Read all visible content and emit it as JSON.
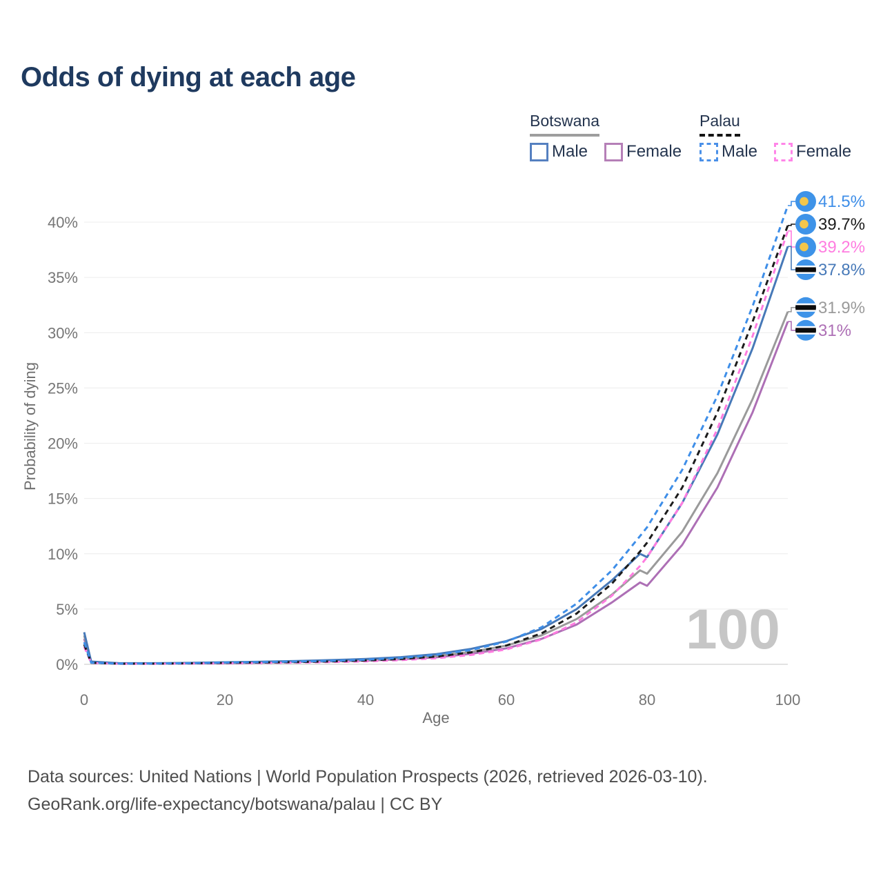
{
  "title": "Odds of dying at each age",
  "legend": {
    "groups": [
      {
        "name": "Botswana",
        "line_style": "solid",
        "underline_color": "#9e9e9e",
        "items": [
          {
            "label": "Male",
            "color": "#5580c0"
          },
          {
            "label": "Female",
            "color": "#b57fb7"
          }
        ]
      },
      {
        "name": "Palau",
        "line_style": "dashed",
        "underline_color": "#141414",
        "items": [
          {
            "label": "Male",
            "color": "#4a90e8"
          },
          {
            "label": "Female",
            "color": "#ff85e8"
          }
        ]
      }
    ]
  },
  "chart_data": {
    "type": "line",
    "title": "Odds of dying at each age",
    "xlabel": "Age",
    "ylabel": "Probability of dying",
    "xlim": [
      0,
      100
    ],
    "ylim_percent": [
      0,
      42
    ],
    "x_ticks": [
      "0",
      "20",
      "40",
      "60",
      "80",
      "100"
    ],
    "y_ticks": [
      "0%",
      "5%",
      "10%",
      "15%",
      "20%",
      "25%",
      "30%",
      "35%",
      "40%"
    ],
    "grid": "horizontal",
    "legend_position": "top-right",
    "watermark": "100",
    "ages": [
      0,
      1,
      5,
      10,
      15,
      20,
      25,
      30,
      35,
      40,
      45,
      50,
      55,
      60,
      65,
      70,
      75,
      79,
      80,
      85,
      90,
      95,
      100
    ],
    "series": [
      {
        "name": "Botswana female",
        "country": "Botswana",
        "sex": "female",
        "color": "#ad6fb5",
        "dash": false,
        "flag": "botswana",
        "end_label": "31%",
        "end_value": 31.0,
        "values_percent": [
          2.3,
          0.2,
          0.08,
          0.08,
          0.09,
          0.12,
          0.15,
          0.2,
          0.26,
          0.34,
          0.45,
          0.63,
          0.95,
          1.45,
          2.3,
          3.6,
          5.6,
          7.4,
          7.1,
          10.8,
          16.0,
          22.8,
          31.0
        ]
      },
      {
        "name": "Botswana both sexes",
        "country": "Botswana",
        "sex": "both",
        "color": "#9a9a9a",
        "dash": false,
        "flag": "botswana",
        "end_label": "31.9%",
        "end_value": 31.9,
        "values_percent": [
          2.6,
          0.22,
          0.09,
          0.09,
          0.11,
          0.15,
          0.19,
          0.24,
          0.31,
          0.4,
          0.53,
          0.75,
          1.12,
          1.7,
          2.62,
          4.1,
          6.3,
          8.5,
          8.2,
          12.0,
          17.3,
          24.0,
          31.9
        ]
      },
      {
        "name": "Botswana male",
        "country": "Botswana",
        "sex": "male",
        "color": "#4779b8",
        "dash": false,
        "flag": "botswana",
        "end_label": "37.8%",
        "end_value": 37.8,
        "values_percent": [
          2.9,
          0.25,
          0.1,
          0.1,
          0.13,
          0.19,
          0.24,
          0.3,
          0.38,
          0.48,
          0.65,
          0.92,
          1.4,
          2.1,
          3.2,
          5.0,
          7.6,
          10.0,
          9.7,
          14.6,
          20.8,
          28.6,
          37.8
        ]
      },
      {
        "name": "Palau female",
        "country": "Palau",
        "sex": "female",
        "color": "#ff7ce0",
        "dash": true,
        "flag": "palau",
        "end_label": "39.2%",
        "end_value": 39.2,
        "values_percent": [
          1.6,
          0.12,
          0.05,
          0.05,
          0.07,
          0.09,
          0.12,
          0.15,
          0.2,
          0.27,
          0.38,
          0.55,
          0.85,
          1.35,
          2.25,
          3.8,
          6.2,
          8.9,
          9.7,
          14.6,
          21.3,
          29.7,
          39.2
        ]
      },
      {
        "name": "Palau both sexes",
        "country": "Palau",
        "sex": "both",
        "color": "#1c1c1c",
        "dash": true,
        "flag": "palau",
        "end_label": "39.7%",
        "end_value": 39.7,
        "values_percent": [
          1.8,
          0.14,
          0.055,
          0.06,
          0.09,
          0.13,
          0.16,
          0.2,
          0.26,
          0.35,
          0.48,
          0.7,
          1.08,
          1.7,
          2.8,
          4.6,
          7.3,
          10.2,
          11.0,
          16.0,
          22.8,
          31.0,
          39.7
        ]
      },
      {
        "name": "Palau male",
        "country": "Palau",
        "sex": "male",
        "color": "#3e8ee8",
        "dash": true,
        "flag": "palau",
        "end_label": "41.5%",
        "end_value": 41.5,
        "values_percent": [
          2.0,
          0.15,
          0.06,
          0.07,
          0.1,
          0.16,
          0.2,
          0.25,
          0.32,
          0.42,
          0.58,
          0.85,
          1.3,
          2.05,
          3.35,
          5.5,
          8.5,
          11.6,
          12.4,
          17.6,
          24.3,
          32.4,
          41.5
        ]
      }
    ],
    "flag_colors": {
      "palau_blue": "#3e93e8",
      "palau_yellow": "#f4c64a",
      "botswana_blue": "#3e93e8",
      "botswana_black": "#0c0c0c",
      "botswana_white": "#ffffff"
    }
  },
  "footer": {
    "line1": "Data sources: United Nations | World Population Prospects (2026, retrieved 2026-03-10).",
    "line2": "GeoRank.org/life-expectancy/botswana/palau | CC BY"
  }
}
